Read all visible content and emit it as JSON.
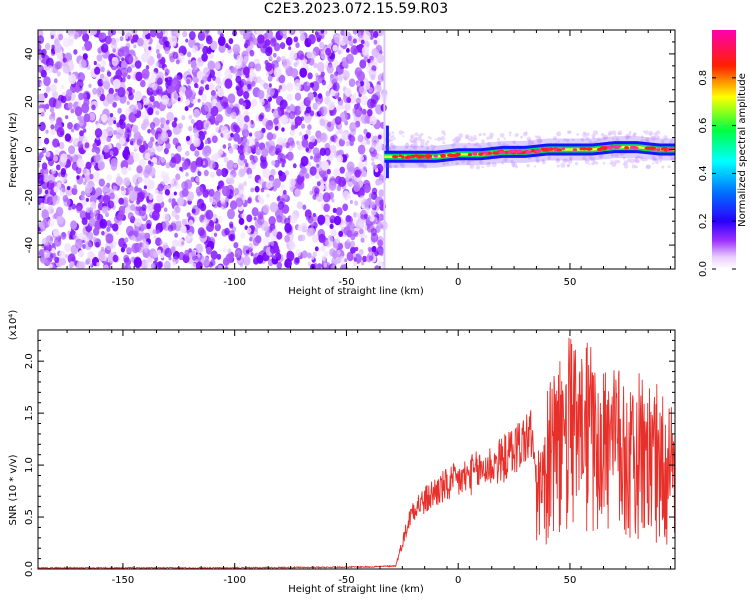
{
  "title": "C2E3.2023.072.15.59.R03",
  "chart_data": [
    {
      "type": "heatmap",
      "title": "",
      "xlabel": "Height of straight line (km)",
      "ylabel": "Frequency (Hz)",
      "xlim": [
        -188,
        97
      ],
      "ylim": [
        -50,
        50
      ],
      "xticks": [
        -150,
        -100,
        -50,
        0,
        50
      ],
      "yticks": [
        -40,
        -20,
        0,
        20,
        40
      ],
      "noise_region_x": [
        -188,
        -33
      ],
      "line_trace": {
        "x": [
          -33,
          -30,
          -20,
          -10,
          0,
          10,
          20,
          30,
          40,
          50,
          60,
          70,
          80,
          90,
          97
        ],
        "y": [
          -3,
          -3,
          -3,
          -3,
          -2,
          -2,
          -1,
          -1,
          0,
          0,
          0,
          1,
          1,
          0,
          0
        ]
      },
      "colorbar": {
        "label": "Normalized spectral amplitude",
        "range": [
          0,
          1
        ],
        "ticks": [
          0.0,
          0.2,
          0.4,
          0.6,
          0.8
        ],
        "tick_labels": [
          "0.0",
          "0.2",
          "0.4",
          "0.6",
          "0.8"
        ],
        "colors": [
          "#ffffff",
          "#7a00ff",
          "#0000ff",
          "#00e5ff",
          "#00ff00",
          "#ffff00",
          "#ff0000",
          "#ff00ff"
        ]
      }
    },
    {
      "type": "line",
      "title": "",
      "xlabel": "Height of straight line (km)",
      "ylabel": "SNR (10 * v/v)",
      "scale_label": "(x10⁴)",
      "xlim": [
        -188,
        97
      ],
      "ylim": [
        0,
        2.3
      ],
      "xticks": [
        -150,
        -100,
        -50,
        0,
        50
      ],
      "yticks": [
        0.0,
        0.5,
        1.0,
        1.5,
        2.0
      ],
      "ytick_labels": [
        "0.0",
        "0.5",
        "1.0",
        "1.5",
        "2.0"
      ],
      "color": "#e8302b",
      "x": [
        -188,
        -100,
        -40,
        -28,
        -25,
        -23,
        -20,
        -15,
        -10,
        -5,
        0,
        5,
        10,
        15,
        20,
        25,
        30,
        33,
        35,
        38,
        40,
        45,
        50,
        55,
        60,
        65,
        70,
        75,
        80,
        85,
        90,
        95,
        97
      ],
      "y": [
        0.01,
        0.01,
        0.02,
        0.03,
        0.25,
        0.4,
        0.6,
        0.65,
        0.75,
        0.8,
        0.85,
        0.9,
        0.95,
        1.0,
        1.05,
        1.15,
        1.25,
        1.3,
        0.8,
        0.7,
        1.0,
        1.15,
        1.3,
        1.2,
        1.25,
        1.1,
        1.2,
        1.05,
        1.1,
        1.0,
        0.95,
        0.9,
        0.85
      ]
    }
  ]
}
